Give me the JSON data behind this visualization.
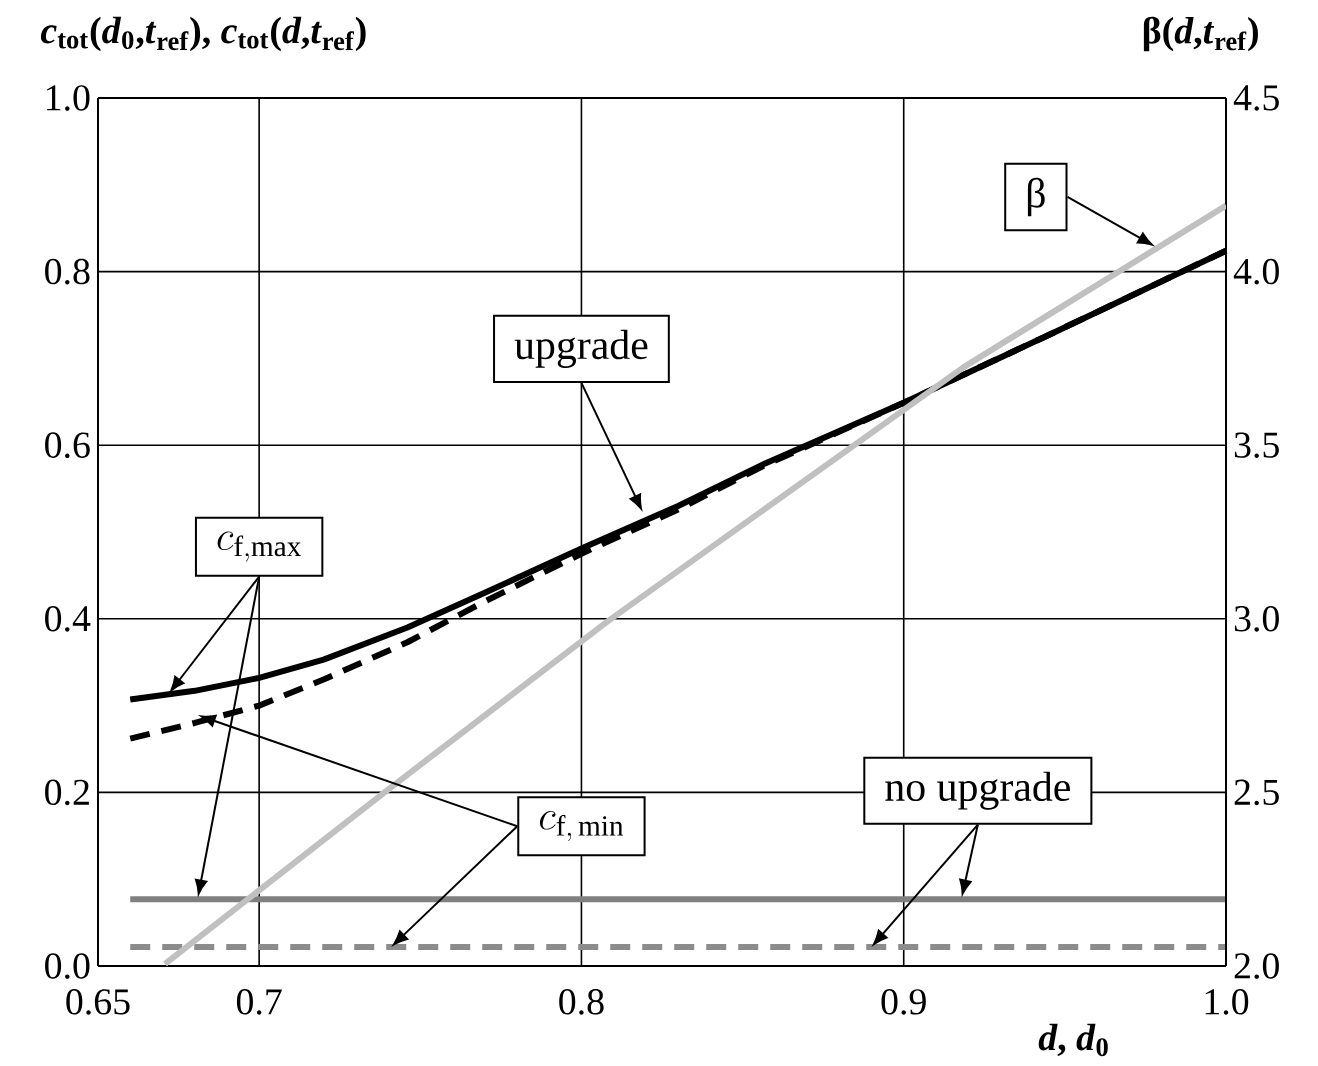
{
  "chart_data": {
    "type": "line",
    "xlabel": "*d*, *d*$_{0}$",
    "ylabel": "*c*$_{tot}$(*d*$_{0}$,*t*$_{ref}$), *c*$_{tot}$(*d*,*t*$_{ref}$)",
    "y2label": "β(*d*,*t*$_{ref}$)",
    "xlim": [
      0.65,
      1.0
    ],
    "ylim": [
      0,
      1
    ],
    "y2lim": [
      2,
      4.5
    ],
    "xticks": [
      0.65,
      0.7,
      0.8,
      0.9,
      {
        "value": 1.0,
        "label": "1.0"
      }
    ],
    "yticks": [
      {
        "value": 0,
        "label": "0.0"
      },
      0.2,
      0.4,
      0.6,
      0.8,
      {
        "value": 1.0,
        "label": "1.0"
      }
    ],
    "y2ticks": [
      {
        "value": 2,
        "label": "2.0"
      },
      2.5,
      {
        "value": 3,
        "label": "3.0"
      },
      3.5,
      {
        "value": 4,
        "label": "4.0"
      },
      4.5
    ],
    "grid": true,
    "series": [
      {
        "color": "#000000",
        "line_style": "solid",
        "x": [
          0.66,
          0.68,
          0.7,
          0.72,
          0.746,
          0.77,
          0.8,
          0.83,
          0.857,
          0.9,
          0.945,
          1.0
        ],
        "values": [
          0.307,
          0.317,
          0.332,
          0.353,
          0.39,
          0.43,
          0.481,
          0.53,
          0.579,
          0.649,
          0.727,
          0.824
        ]
      },
      {
        "color": "#000000",
        "line_style": "dashed",
        "x": [
          0.66,
          0.68,
          0.7,
          0.72,
          0.746,
          0.77,
          0.8,
          0.83,
          0.857,
          0.9,
          0.945,
          1.0
        ],
        "values": [
          0.262,
          0.28,
          0.3,
          0.33,
          0.373,
          0.42,
          0.475,
          0.526,
          0.577,
          0.649,
          0.727,
          0.824
        ]
      },
      {
        "color": "#808080",
        "line_style": "solid",
        "x": [
          0.66,
          1.0
        ],
        "values": [
          0.077,
          0.077
        ]
      },
      {
        "color": "#8c8c8c",
        "line_style": "dashed",
        "x": [
          0.66,
          1.0
        ],
        "values": [
          0.022,
          0.022
        ]
      },
      {
        "color": "#c0c0c0",
        "line_style": "solid",
        "axis": "y2",
        "x": [
          0.6708,
          0.7383,
          0.808,
          0.9186,
          1.0
        ],
        "values": [
          2.006,
          2.496,
          2.992,
          3.725,
          4.19
        ]
      }
    ],
    "annotations": [
      {
        "text": "upgrade",
        "x": 0.819,
        "y": 0.523
      },
      "β",
      {
        "text": "c_{\\mathrm{f,max}}",
        "x": 0.672,
        "y": 0.314
      },
      {
        "text": "c_{\\mathrm{f,\\,min}}",
        "x": 0.681,
        "y": 0.289
      },
      {
        "text": "no upgrade",
        "x": 0.918,
        "y": 0.079
      }
    ]
  }
}
